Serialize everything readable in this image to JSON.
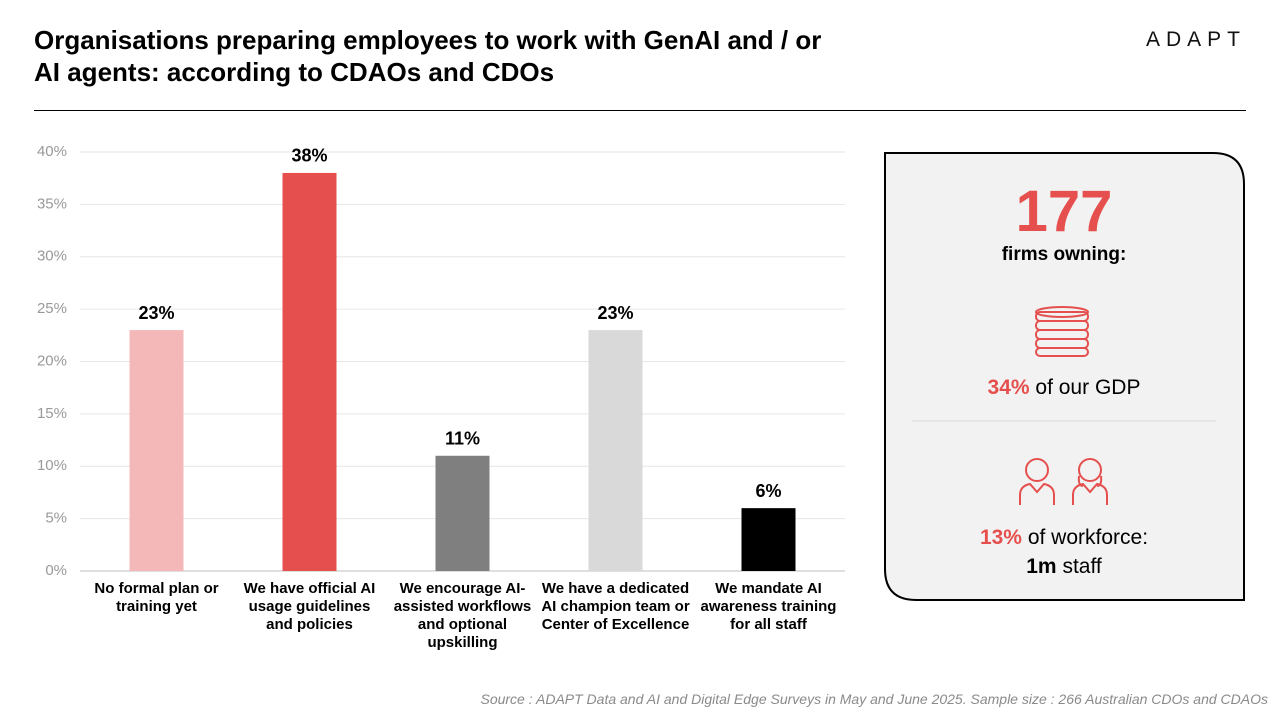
{
  "title": "Organisations preparing employees to work with GenAI and / or AI agents: according to CDAOs and CDOs",
  "logo": "ADAPT",
  "chart_data": {
    "type": "bar",
    "categories": [
      "No formal plan or training yet",
      "We have official AI usage guidelines and policies",
      "We encourage AI-assisted workflows and optional upskilling",
      "We have a dedicated AI champion team or Center of Excellence",
      "We mandate AI awareness training for all staff"
    ],
    "values": [
      23,
      38,
      11,
      23,
      6
    ],
    "value_labels": [
      "23%",
      "38%",
      "11%",
      "23%",
      "6%"
    ],
    "colors": [
      "#f4b8b8",
      "#e5504e",
      "#7f7f7f",
      "#d9d9d9",
      "#000000"
    ],
    "ylim": [
      0,
      40
    ],
    "yticks": [
      {
        "value": 0,
        "label": "0%"
      },
      {
        "value": 5,
        "label": "5%"
      },
      {
        "value": 10,
        "label": "10%"
      },
      {
        "value": 15,
        "label": "15%"
      },
      {
        "value": 20,
        "label": "20%"
      },
      {
        "value": 25,
        "label": "25%"
      },
      {
        "value": 30,
        "label": "30%"
      },
      {
        "value": 35,
        "label": "35%"
      },
      {
        "value": 40,
        "label": "40%"
      }
    ],
    "grid": true
  },
  "panel": {
    "number": "177",
    "number_caption": "firms owning:",
    "stat1_value": "34%",
    "stat1_text": "of our GDP",
    "stat2_value": "13%",
    "stat2_text": "of workforce:",
    "stat2_bold": "1m",
    "stat2_tail": "staff"
  },
  "source": "Source : ADAPT Data and AI and Digital Edge Surveys in May and June 2025. Sample size : 266 Australian CDOs and CDAOs"
}
